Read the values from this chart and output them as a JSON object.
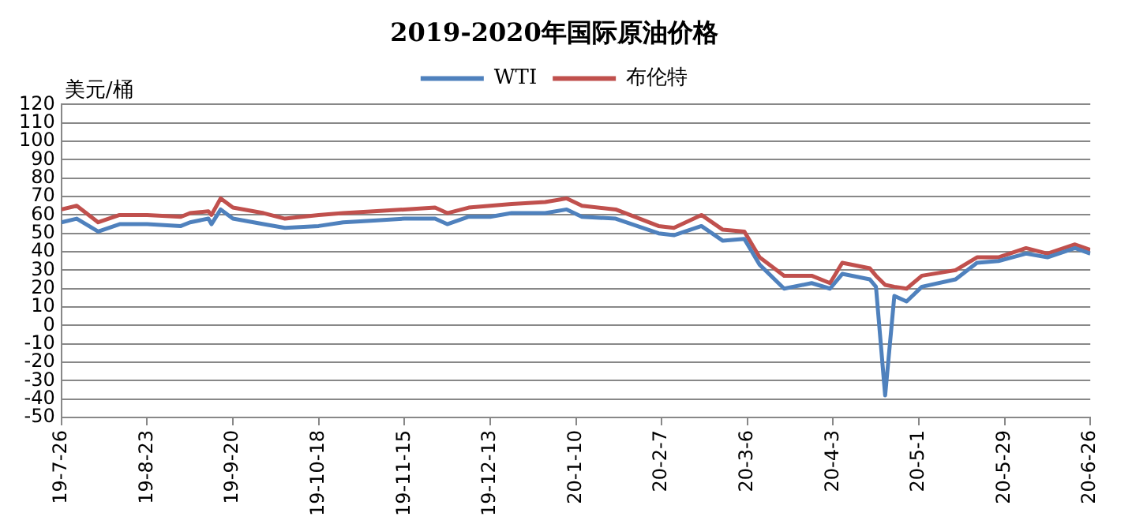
{
  "chart_data": {
    "type": "line",
    "title": "2019-2020年国际原油价格",
    "ylabel": "美元/桶",
    "legend": "top",
    "grid": "y",
    "marker": "none",
    "line_style": "solid",
    "ylim": [
      -50,
      120
    ],
    "yticks": [
      -50,
      -40,
      -30,
      -20,
      -10,
      0,
      10,
      20,
      30,
      40,
      50,
      60,
      70,
      80,
      90,
      100,
      110,
      120
    ],
    "xlim": [
      "2019-07-26",
      "2020-06-26"
    ],
    "xticks": [
      {
        "value": "2019-07-26",
        "label": "19-7-26"
      },
      {
        "value": "2019-08-23",
        "label": "19-8-23"
      },
      {
        "value": "2019-09-20",
        "label": "19-9-20"
      },
      {
        "value": "2019-10-18",
        "label": "19-10-18"
      },
      {
        "value": "2019-11-15",
        "label": "19-11-15"
      },
      {
        "value": "2019-12-13",
        "label": "19-12-13"
      },
      {
        "value": "2020-01-10",
        "label": "20-1-10"
      },
      {
        "value": "2020-02-07",
        "label": "20-2-7"
      },
      {
        "value": "2020-03-06",
        "label": "20-3-6"
      },
      {
        "value": "2020-04-03",
        "label": "20-4-3"
      },
      {
        "value": "2020-05-01",
        "label": "20-5-1"
      },
      {
        "value": "2020-05-29",
        "label": "20-5-29"
      },
      {
        "value": "2020-06-26",
        "label": "20-6-26"
      }
    ],
    "x": [
      "2019-07-26",
      "2019-07-31",
      "2019-08-07",
      "2019-08-14",
      "2019-08-23",
      "2019-09-03",
      "2019-09-06",
      "2019-09-12",
      "2019-09-13",
      "2019-09-16",
      "2019-09-20",
      "2019-09-30",
      "2019-10-07",
      "2019-10-18",
      "2019-10-26",
      "2019-11-05",
      "2019-11-15",
      "2019-11-25",
      "2019-11-29",
      "2019-12-06",
      "2019-12-13",
      "2019-12-20",
      "2019-12-31",
      "2020-01-07",
      "2020-01-12",
      "2020-01-23",
      "2020-02-06",
      "2020-02-11",
      "2020-02-20",
      "2020-02-27",
      "2020-03-05",
      "2020-03-10",
      "2020-03-18",
      "2020-03-27",
      "2020-04-02",
      "2020-04-06",
      "2020-04-15",
      "2020-04-17",
      "2020-04-20",
      "2020-04-23",
      "2020-04-27",
      "2020-05-02",
      "2020-05-13",
      "2020-05-20",
      "2020-05-27",
      "2020-06-05",
      "2020-06-12",
      "2020-06-21",
      "2020-06-26"
    ],
    "series": [
      {
        "name": "WTI",
        "color": "#4f81bd",
        "values": [
          56,
          58,
          51,
          55,
          55,
          54,
          56,
          58,
          55,
          63,
          58,
          55,
          53,
          54,
          56,
          57,
          58,
          58,
          55,
          59,
          59,
          61,
          61,
          63,
          59,
          58,
          50,
          49,
          54,
          46,
          47,
          33,
          20,
          23,
          20,
          28,
          25,
          21,
          -38,
          16,
          13,
          21,
          25,
          34,
          35,
          39,
          37,
          42,
          39
        ]
      },
      {
        "name": "布伦特",
        "color": "#c0504d",
        "values": [
          63,
          65,
          56,
          60,
          60,
          59,
          61,
          62,
          60,
          69,
          64,
          61,
          58,
          60,
          61,
          62,
          63,
          64,
          61,
          64,
          65,
          66,
          67,
          69,
          65,
          63,
          54,
          53,
          60,
          52,
          51,
          37,
          27,
          27,
          23,
          34,
          31,
          27,
          22,
          21,
          20,
          27,
          30,
          37,
          37,
          42,
          39,
          44,
          41
        ]
      }
    ]
  }
}
